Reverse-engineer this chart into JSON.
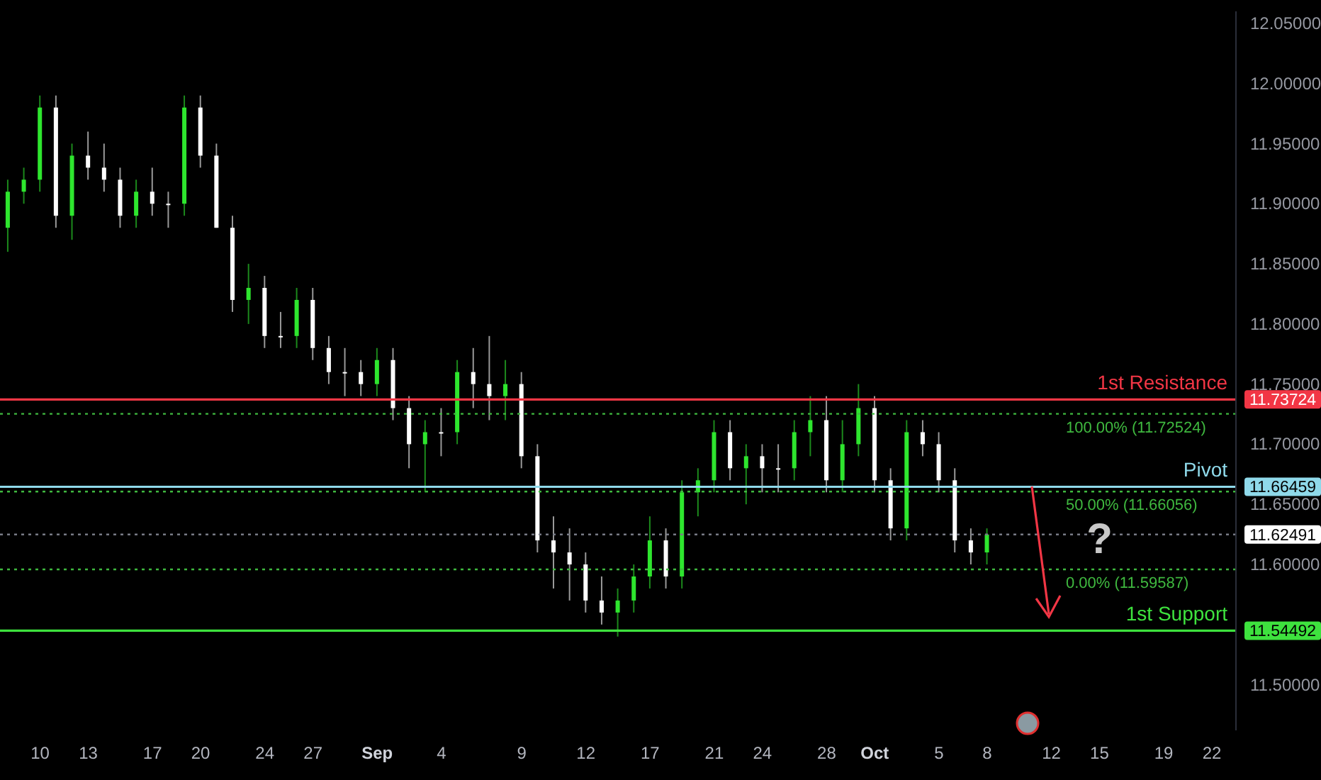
{
  "chart_data": {
    "type": "candlestick",
    "categories": [
      null,
      null,
      "10",
      null,
      null,
      "13",
      null,
      null,
      null,
      "17",
      null,
      null,
      "20",
      null,
      null,
      null,
      "24",
      null,
      null,
      "27",
      null,
      null,
      null,
      "Sep",
      null,
      null,
      null,
      "4",
      null,
      null,
      null,
      null,
      "9",
      null,
      null,
      null,
      "12",
      null,
      null,
      null,
      "17",
      null,
      null,
      null,
      "21",
      null,
      null,
      "24",
      null,
      null,
      null,
      "28",
      null,
      null,
      "Oct",
      null,
      null,
      null,
      "5",
      null,
      null,
      "8",
      null,
      null,
      null,
      "12",
      null,
      null,
      "15",
      null,
      null,
      null,
      "19",
      null,
      null,
      "22",
      null
    ],
    "ohlc": [
      [
        11.88,
        11.92,
        11.86,
        11.91
      ],
      [
        11.91,
        11.93,
        11.9,
        11.92
      ],
      [
        11.92,
        11.99,
        11.91,
        11.98
      ],
      [
        11.98,
        11.99,
        11.88,
        11.89
      ],
      [
        11.89,
        11.95,
        11.87,
        11.94
      ],
      [
        11.94,
        11.96,
        11.92,
        11.93
      ],
      [
        11.93,
        11.95,
        11.91,
        11.92
      ],
      [
        11.92,
        11.93,
        11.88,
        11.89
      ],
      [
        11.89,
        11.92,
        11.88,
        11.91
      ],
      [
        11.91,
        11.93,
        11.89,
        11.9
      ],
      [
        11.9,
        11.91,
        11.88,
        11.9
      ],
      [
        11.9,
        11.99,
        11.89,
        11.98
      ],
      [
        11.98,
        11.99,
        11.93,
        11.94
      ],
      [
        11.94,
        11.95,
        11.88,
        11.88
      ],
      [
        11.88,
        11.89,
        11.81,
        11.82
      ],
      [
        11.82,
        11.85,
        11.8,
        11.83
      ],
      [
        11.83,
        11.84,
        11.78,
        11.79
      ],
      [
        11.79,
        11.81,
        11.78,
        11.79
      ],
      [
        11.79,
        11.83,
        11.78,
        11.82
      ],
      [
        11.82,
        11.83,
        11.77,
        11.78
      ],
      [
        11.78,
        11.79,
        11.75,
        11.76
      ],
      [
        11.76,
        11.78,
        11.74,
        11.76
      ],
      [
        11.76,
        11.77,
        11.74,
        11.75
      ],
      [
        11.75,
        11.78,
        11.74,
        11.77
      ],
      [
        11.77,
        11.78,
        11.72,
        11.73
      ],
      [
        11.73,
        11.74,
        11.68,
        11.7
      ],
      [
        11.7,
        11.72,
        11.66,
        11.71
      ],
      [
        11.71,
        11.73,
        11.69,
        11.71
      ],
      [
        11.71,
        11.77,
        11.7,
        11.76
      ],
      [
        11.76,
        11.78,
        11.73,
        11.75
      ],
      [
        11.75,
        11.79,
        11.72,
        11.74
      ],
      [
        11.74,
        11.77,
        11.72,
        11.75
      ],
      [
        11.75,
        11.76,
        11.68,
        11.69
      ],
      [
        11.69,
        11.7,
        11.61,
        11.62
      ],
      [
        11.62,
        11.64,
        11.58,
        11.61
      ],
      [
        11.61,
        11.63,
        11.57,
        11.6
      ],
      [
        11.6,
        11.61,
        11.56,
        11.57
      ],
      [
        11.57,
        11.59,
        11.55,
        11.56
      ],
      [
        11.56,
        11.58,
        11.54,
        11.57
      ],
      [
        11.57,
        11.6,
        11.56,
        11.59
      ],
      [
        11.59,
        11.64,
        11.58,
        11.62
      ],
      [
        11.62,
        11.63,
        11.58,
        11.59
      ],
      [
        11.59,
        11.67,
        11.58,
        11.66
      ],
      [
        11.66,
        11.68,
        11.64,
        11.67
      ],
      [
        11.67,
        11.72,
        11.66,
        11.71
      ],
      [
        11.71,
        11.72,
        11.67,
        11.68
      ],
      [
        11.68,
        11.7,
        11.65,
        11.69
      ],
      [
        11.69,
        11.7,
        11.66,
        11.68
      ],
      [
        11.68,
        11.7,
        11.66,
        11.68
      ],
      [
        11.68,
        11.72,
        11.67,
        11.71
      ],
      [
        11.71,
        11.74,
        11.69,
        11.72
      ],
      [
        11.72,
        11.74,
        11.66,
        11.67
      ],
      [
        11.67,
        11.72,
        11.66,
        11.7
      ],
      [
        11.7,
        11.75,
        11.69,
        11.73
      ],
      [
        11.73,
        11.74,
        11.66,
        11.67
      ],
      [
        11.67,
        11.68,
        11.62,
        11.63
      ],
      [
        11.63,
        11.72,
        11.62,
        11.71
      ],
      [
        11.71,
        11.72,
        11.69,
        11.7
      ],
      [
        11.7,
        11.71,
        11.66,
        11.67
      ],
      [
        11.67,
        11.68,
        11.61,
        11.62
      ],
      [
        11.62,
        11.63,
        11.6,
        11.61
      ],
      [
        11.61,
        11.63,
        11.6,
        11.62491
      ],
      null,
      null,
      null,
      null,
      null,
      null,
      null,
      null,
      null,
      null,
      null,
      null,
      null,
      null,
      null
    ],
    "colors": [
      "#2ee62e",
      "#2ee62e",
      "#2ee62e",
      "#ffffff",
      "#2ee62e",
      "#ffffff",
      "#ffffff",
      "#ffffff",
      "#2ee62e",
      "#ffffff",
      "#ffffff",
      "#2ee62e",
      "#ffffff",
      "#ffffff",
      "#ffffff",
      "#2ee62e",
      "#ffffff",
      "#ffffff",
      "#2ee62e",
      "#ffffff",
      "#ffffff",
      "#ffffff",
      "#ffffff",
      "#2ee62e",
      "#ffffff",
      "#ffffff",
      "#2ee62e",
      "#ffffff",
      "#2ee62e",
      "#ffffff",
      "#ffffff",
      "#2ee62e",
      "#ffffff",
      "#ffffff",
      "#ffffff",
      "#ffffff",
      "#ffffff",
      "#ffffff",
      "#2ee62e",
      "#2ee62e",
      "#2ee62e",
      "#ffffff",
      "#2ee62e",
      "#2ee62e",
      "#2ee62e",
      "#ffffff",
      "#2ee62e",
      "#ffffff",
      "#ffffff",
      "#2ee62e",
      "#2ee62e",
      "#ffffff",
      "#2ee62e",
      "#2ee62e",
      "#ffffff",
      "#ffffff",
      "#2ee62e",
      "#ffffff",
      "#ffffff",
      "#ffffff",
      "#ffffff",
      "#2ee62e",
      null,
      null,
      null,
      null,
      null,
      null,
      null,
      null,
      null,
      null,
      null,
      null,
      null,
      null,
      null
    ],
    "ylim": [
      11.462,
      12.06
    ],
    "yticks": [
      {
        "value": 11.5,
        "label": "11.50000"
      },
      {
        "value": 11.54492,
        "label": "11.54492"
      },
      {
        "value": 11.6,
        "label": "11.60000"
      },
      {
        "value": 11.62491,
        "label": "11.62491"
      },
      {
        "value": 11.65,
        "label": "11.65000"
      },
      {
        "value": 11.66459,
        "label": "11.66459"
      },
      {
        "value": 11.7,
        "label": "11.70000"
      },
      {
        "value": 11.73724,
        "label": "11.73724"
      },
      {
        "value": 11.75,
        "label": "11.75000"
      },
      {
        "value": 11.8,
        "label": "11.80000"
      },
      {
        "value": 11.85,
        "label": "11.85000"
      },
      {
        "value": 11.9,
        "label": "11.90000"
      },
      {
        "value": 11.95,
        "label": "11.95000"
      },
      {
        "value": 12.0,
        "label": "12.00000"
      },
      {
        "value": 12.05,
        "label": "12.05000"
      }
    ],
    "ref_lines": [
      {
        "axis": "y",
        "value": 11.62491,
        "color": "#787b86",
        "line_style": "dotted"
      },
      {
        "axis": "y",
        "value": 11.72524,
        "label": "100.00% (11.72524)",
        "color": "#3fb83f",
        "line_style": "dotted"
      },
      {
        "axis": "y",
        "value": 11.66056,
        "label": "50.00% (11.66056)",
        "color": "#3fb83f",
        "line_style": "dotted"
      },
      {
        "axis": "y",
        "value": 11.59587,
        "label": "0.00% (11.59587)",
        "color": "#3fb83f",
        "line_style": "dotted"
      },
      {
        "axis": "y",
        "value": 11.73724,
        "label": "1st Resistance",
        "color": "#f23645",
        "line_style": "solid"
      },
      {
        "axis": "y",
        "value": 11.66459,
        "label": "Pivot",
        "color": "#8fd9ea",
        "line_style": "solid"
      },
      {
        "axis": "y",
        "value": 11.54492,
        "label": "1st Support",
        "color": "#3ee23e",
        "line_style": "solid"
      }
    ],
    "annotations": [
      {
        "text": "?",
        "x": "15",
        "y": 11.62
      }
    ]
  }
}
